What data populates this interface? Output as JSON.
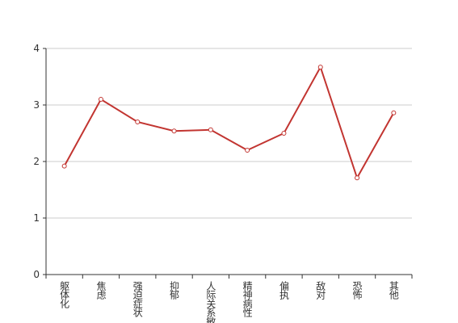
{
  "chart_data": {
    "type": "line",
    "categories": [
      "躯体化",
      "焦虑",
      "强迫症状",
      "抑郁",
      "人际关系敏感",
      "精神病性",
      "偏执",
      "敌对",
      "恐怖",
      "其他"
    ],
    "values": [
      1.92,
      3.1,
      2.7,
      2.54,
      2.56,
      2.2,
      2.5,
      3.67,
      1.71,
      2.86
    ],
    "color": "#c23531",
    "ylim": [
      0,
      4
    ],
    "yticks": [
      0,
      1,
      2,
      3,
      4
    ],
    "grid": true
  }
}
